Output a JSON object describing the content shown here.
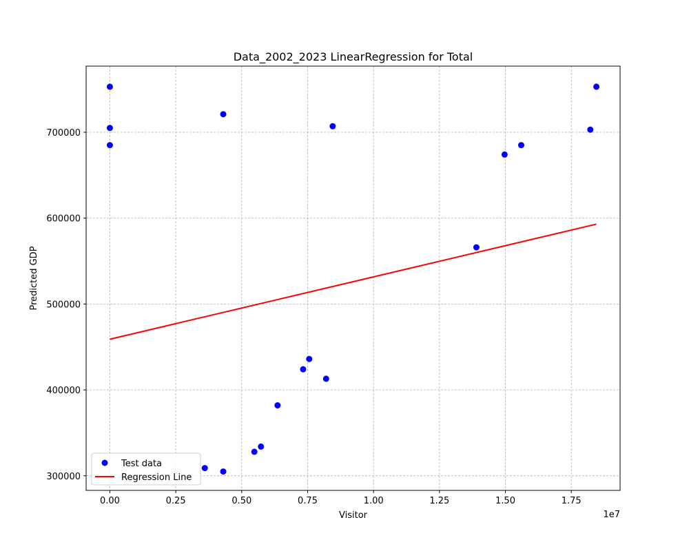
{
  "chart_data": {
    "type": "scatter",
    "title": "Data_2002_2023 LinearRegression for Total",
    "xlabel": "Visitor",
    "ylabel": "Predicted GDP",
    "x_offset_label": "1e7",
    "xlim": [
      -0.09,
      1.935
    ],
    "ylim": [
      283000,
      777000
    ],
    "x_ticks": [
      0.0,
      0.25,
      0.5,
      0.75,
      1.0,
      1.25,
      1.5,
      1.75
    ],
    "x_tick_labels": [
      "0.00",
      "0.25",
      "0.50",
      "0.75",
      "1.00",
      "1.25",
      "1.50",
      "1.75"
    ],
    "y_ticks": [
      300000,
      400000,
      500000,
      600000,
      700000
    ],
    "y_tick_labels": [
      "300000",
      "400000",
      "500000",
      "600000",
      "700000"
    ],
    "grid": true,
    "legend_position": "lower-left",
    "series": [
      {
        "name": "Test data",
        "kind": "scatter",
        "color": "#0000ff",
        "points": [
          [
            0.0,
            753000
          ],
          [
            0.0,
            705000
          ],
          [
            0.0,
            685000
          ],
          [
            0.43,
            721000
          ],
          [
            0.845,
            707000
          ],
          [
            0.36,
            309000
          ],
          [
            0.43,
            305000
          ],
          [
            0.548,
            328000
          ],
          [
            0.573,
            334000
          ],
          [
            0.636,
            382000
          ],
          [
            0.733,
            424000
          ],
          [
            0.756,
            436000
          ],
          [
            0.82,
            413000
          ],
          [
            1.39,
            566000
          ],
          [
            1.497,
            674000
          ],
          [
            1.56,
            685000
          ],
          [
            1.822,
            703000
          ],
          [
            1.845,
            753000
          ]
        ]
      },
      {
        "name": "Regression Line",
        "kind": "line",
        "color": "#ff0000",
        "points": [
          [
            0.0,
            459000
          ],
          [
            1.845,
            593000
          ]
        ]
      }
    ]
  }
}
